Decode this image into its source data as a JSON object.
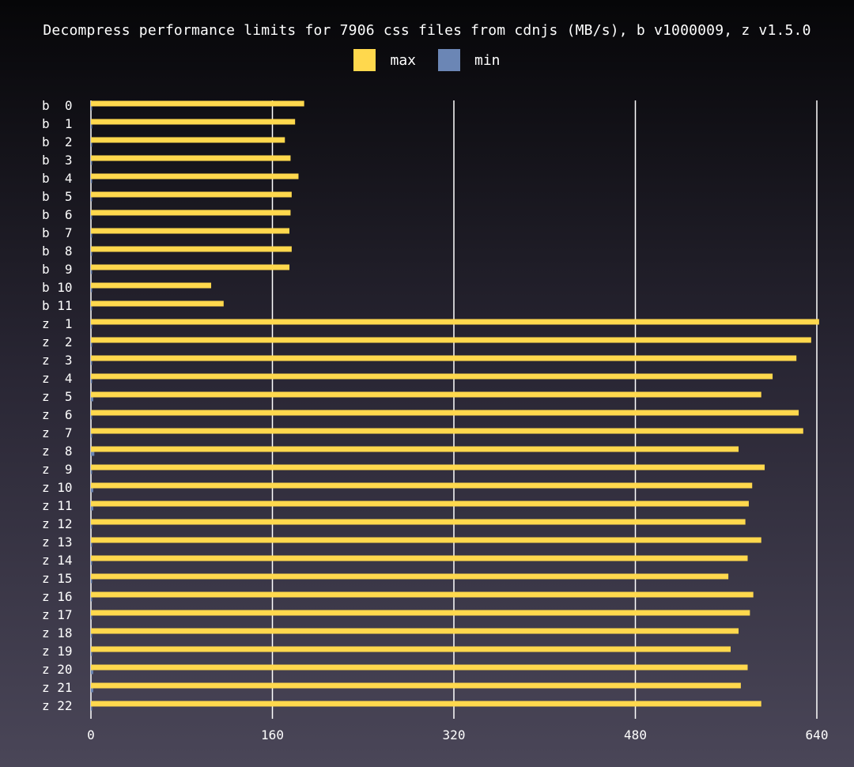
{
  "chart_data": {
    "type": "bar",
    "orientation": "horizontal",
    "title": "Decompress performance limits for 7906 css files from cdnjs (MB/s), b v1000009, z v1.5.0",
    "xlabel": "",
    "ylabel": "",
    "xlim": [
      0,
      640
    ],
    "xticks": [
      "0",
      "160",
      "320",
      "480",
      "640"
    ],
    "grid": true,
    "legend_position": "top-center",
    "colors": {
      "max": "#ffd84d",
      "min": "#6b86b5",
      "grid": "#ffffff"
    },
    "categories": [
      "b  0",
      "b  1",
      "b  2",
      "b  3",
      "b  4",
      "b  5",
      "b  6",
      "b  7",
      "b  8",
      "b  9",
      "b 10",
      "b 11",
      "z  1",
      "z  2",
      "z  3",
      "z  4",
      "z  5",
      "z  6",
      "z  7",
      "z  8",
      "z  9",
      "z 10",
      "z 11",
      "z 12",
      "z 13",
      "z 14",
      "z 15",
      "z 16",
      "z 17",
      "z 18",
      "z 19",
      "z 20",
      "z 21",
      "z 22"
    ],
    "series": [
      {
        "name": "max",
        "values": [
          188,
          180,
          171,
          176,
          183,
          177,
          176,
          175,
          177,
          175,
          106,
          117,
          642,
          635,
          622,
          601,
          591,
          624,
          628,
          571,
          594,
          583,
          580,
          577,
          591,
          579,
          562,
          584,
          581,
          571,
          564,
          579,
          573,
          591
        ]
      },
      {
        "name": "min",
        "values": [
          1,
          1,
          1,
          1,
          1,
          1,
          1,
          1,
          1,
          1,
          1,
          1,
          1,
          1,
          1,
          1,
          2,
          1,
          1,
          3,
          1,
          2,
          2,
          1,
          1,
          1,
          1,
          1,
          1,
          1,
          1,
          2,
          2,
          1
        ]
      }
    ]
  }
}
